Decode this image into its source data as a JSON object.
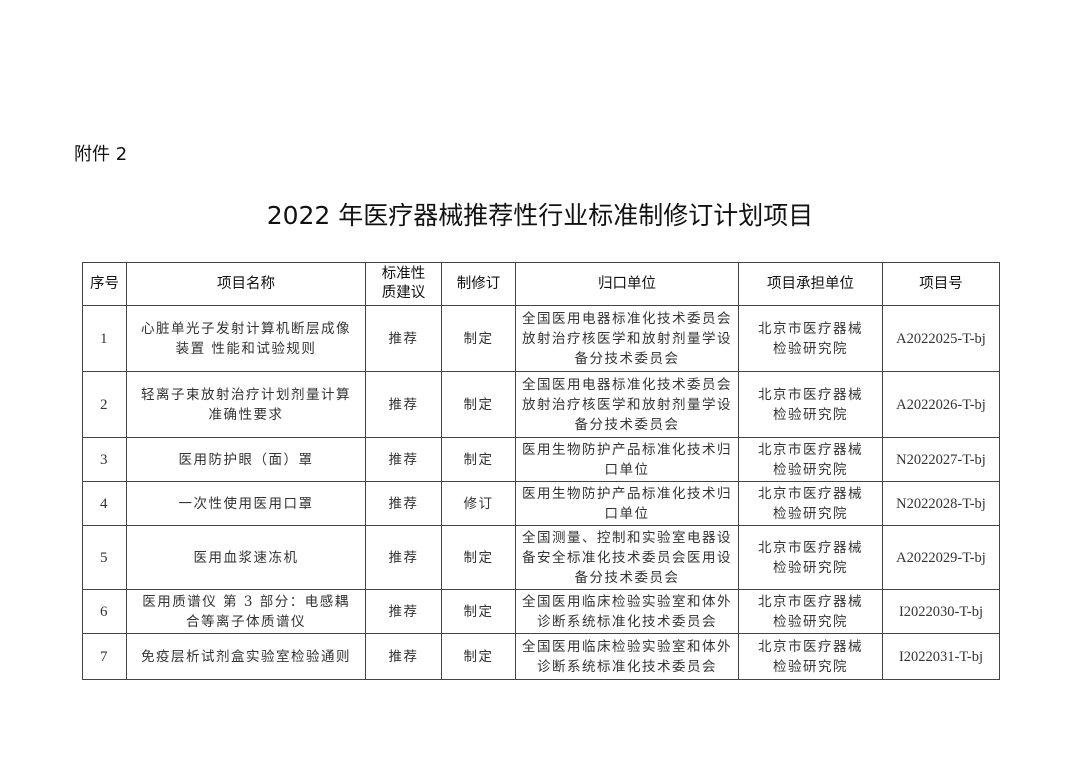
{
  "attachment_label": "附件 2",
  "title": "2022 年医疗器械推荐性行业标准制修订计划项目",
  "table": {
    "headers": [
      "序号",
      "项目名称",
      "标准性质建议",
      "制修订",
      "归口单位",
      "项目承担单位",
      "项目号"
    ],
    "rows": [
      {
        "no": "1",
        "name": "心脏单光子发射计算机断层成像装置 性能和试验规则",
        "nature": "推荐",
        "type": "制定",
        "unit": "全国医用电器标准化技术委员会放射治疗核医学和放射剂量学设备分技术委员会",
        "undertaker": "北京市医疗器械检验研究院",
        "code": "A2022025-T-bj"
      },
      {
        "no": "2",
        "name": "轻离子束放射治疗计划剂量计算准确性要求",
        "nature": "推荐",
        "type": "制定",
        "unit": "全国医用电器标准化技术委员会放射治疗核医学和放射剂量学设备分技术委员会",
        "undertaker": "北京市医疗器械检验研究院",
        "code": "A2022026-T-bj"
      },
      {
        "no": "3",
        "name": "医用防护眼（面）罩",
        "nature": "推荐",
        "type": "制定",
        "unit": "医用生物防护产品标准化技术归口单位",
        "undertaker": "北京市医疗器械检验研究院",
        "code": "N2022027-T-bj"
      },
      {
        "no": "4",
        "name": "一次性使用医用口罩",
        "nature": "推荐",
        "type": "修订",
        "unit": "医用生物防护产品标准化技术归口单位",
        "undertaker": "北京市医疗器械检验研究院",
        "code": "N2022028-T-bj"
      },
      {
        "no": "5",
        "name": "医用血浆速冻机",
        "nature": "推荐",
        "type": "制定",
        "unit": "全国测量、控制和实验室电器设备安全标准化技术委员会医用设备分技术委员会",
        "undertaker": "北京市医疗器械检验研究院",
        "code": "A2022029-T-bj"
      },
      {
        "no": "6",
        "name": "医用质谱仪 第 3 部分：电感耦合等离子体质谱仪",
        "nature": "推荐",
        "type": "制定",
        "unit": "全国医用临床检验实验室和体外诊断系统标准化技术委员会",
        "undertaker": "北京市医疗器械检验研究院",
        "code": "I2022030-T-bj"
      },
      {
        "no": "7",
        "name": "免疫层析试剂盒实验室检验通则",
        "nature": "推荐",
        "type": "制定",
        "unit": "全国医用临床检验实验室和体外诊断系统标准化技术委员会",
        "undertaker": "北京市医疗器械检验研究院",
        "code": "I2022031-T-bj"
      }
    ]
  }
}
